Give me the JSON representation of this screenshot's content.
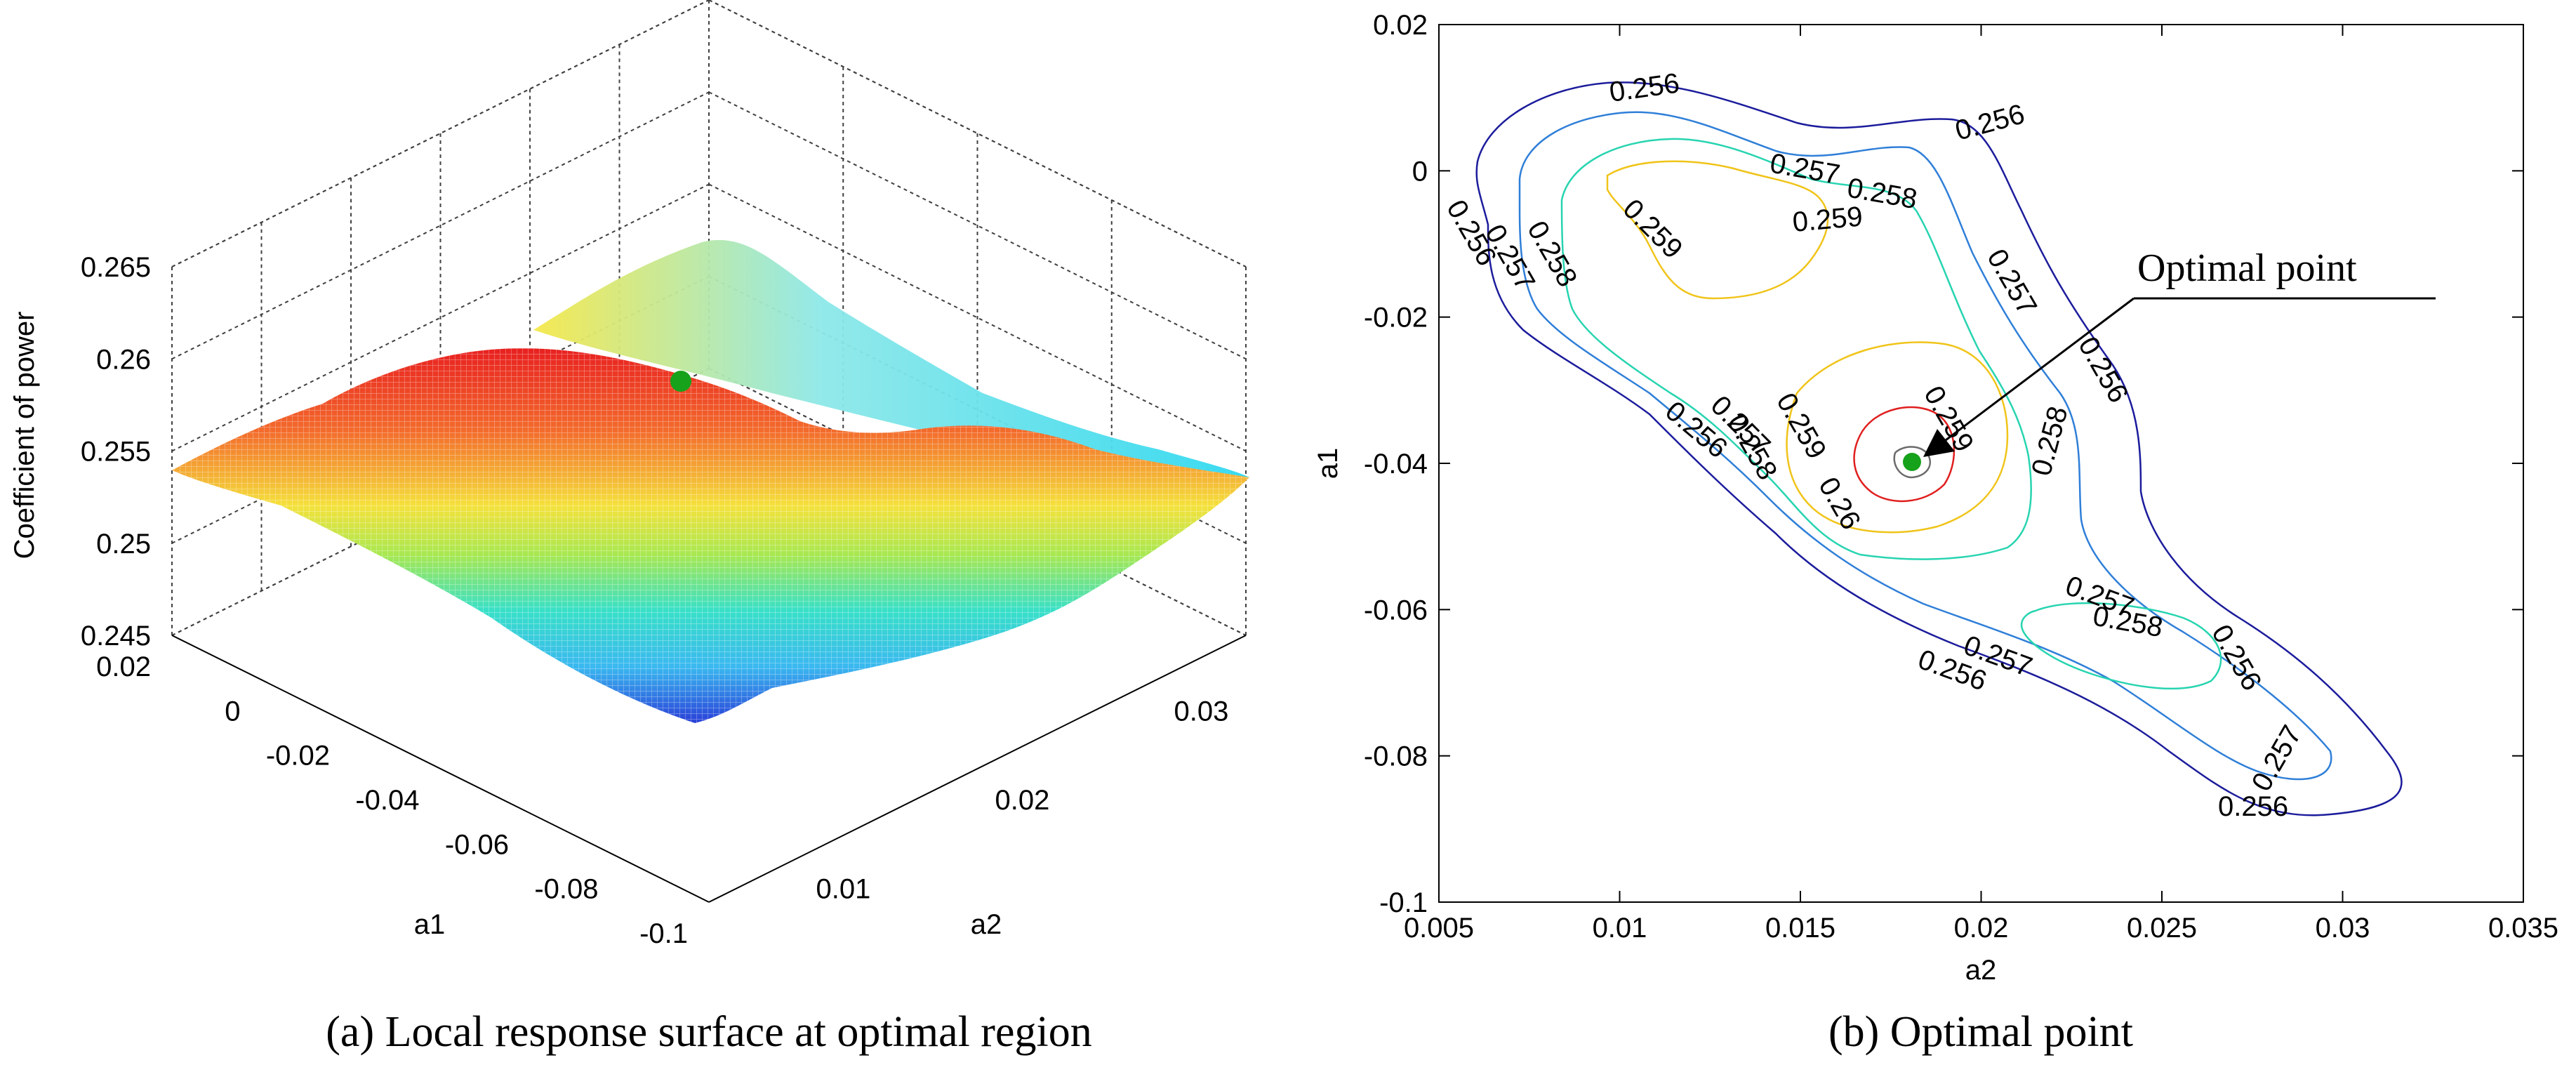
{
  "chart_data": [
    {
      "type": "surface",
      "panel": "a",
      "caption": "(a) Local response surface at optimal region",
      "xlabel": "a1",
      "ylabel": "a2",
      "zlabel": "Coefficient of power",
      "xlim": [
        -0.1,
        0.02
      ],
      "ylim": [
        0.005,
        0.035
      ],
      "zlim": [
        0.245,
        0.265
      ],
      "x_ticks": [
        "0.02",
        "0",
        "-0.02",
        "-0.04",
        "-0.06",
        "-0.08",
        "-0.1"
      ],
      "y_ticks": [
        "0.01",
        "0.02",
        "0.03"
      ],
      "z_ticks": [
        "0.265",
        "0.26",
        "0.255",
        "0.25",
        "0.245"
      ],
      "grid": true,
      "colormap": "jet",
      "optimal_point": {
        "a1": -0.039,
        "a2": 0.018,
        "cp": 0.2605,
        "color": "#16a21a"
      }
    },
    {
      "type": "contour",
      "panel": "b",
      "caption": "(b) Optimal point",
      "xlabel": "a2",
      "ylabel": "a1",
      "xlim": [
        0.005,
        0.035
      ],
      "ylim": [
        -0.1,
        0.02
      ],
      "x_ticks": [
        "0.005",
        "0.01",
        "0.015",
        "0.02",
        "0.025",
        "0.03",
        "0.035"
      ],
      "y_ticks": [
        "0.02",
        "0",
        "-0.02",
        "-0.04",
        "-0.06",
        "-0.08",
        "-0.1"
      ],
      "contour_levels": [
        {
          "level": 0.256,
          "label": "0.256",
          "color": "#1c1c9c"
        },
        {
          "level": 0.257,
          "label": "0.257",
          "color": "#2f7fd8"
        },
        {
          "level": 0.258,
          "label": "0.258",
          "color": "#27d4b0"
        },
        {
          "level": 0.259,
          "label": "0.259",
          "color": "#f0c419"
        },
        {
          "level": 0.26,
          "label": "0.26",
          "color": "#e01f1f"
        }
      ],
      "annotation": "Optimal point",
      "optimal_point": {
        "a2": 0.018,
        "a1": -0.039,
        "color": "#16a21a"
      }
    }
  ]
}
